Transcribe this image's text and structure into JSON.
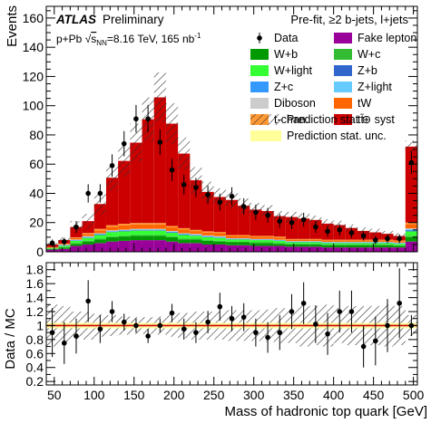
{
  "chart_data": {
    "type": "bar",
    "stacked": true,
    "histogram": true,
    "x_bin_edges": [
      40,
      55,
      70,
      85,
      100,
      115,
      130,
      145,
      160,
      175,
      190,
      205,
      220,
      235,
      250,
      265,
      280,
      295,
      310,
      325,
      340,
      355,
      370,
      385,
      400,
      415,
      430,
      445,
      460,
      475,
      490,
      505
    ],
    "xlabel": "Mass of hadronic top quark [GeV]",
    "ylabel": "Events",
    "xlim": [
      40,
      505
    ],
    "ylim": [
      0,
      168
    ],
    "x_ticks": [
      "50",
      "100",
      "150",
      "200",
      "250",
      "300",
      "350",
      "400",
      "450",
      "500"
    ],
    "y_ticks": [
      "0",
      "20",
      "40",
      "60",
      "80",
      "100",
      "120",
      "140",
      "160"
    ],
    "annotations": {
      "atlas": "ATLAS",
      "preliminary": "Preliminary",
      "collision_prefix": "p+Pb ",
      "sqrt_s": "s",
      "sqrt_sub": "NN",
      "collision_suffix": "=8.16 TeV, 165 nb",
      "lumi_exp": "-1",
      "region": "Pre-fit, ≥2 b-jets, l+jets"
    },
    "series": [
      {
        "name": "Fake lepton",
        "color": "#990099",
        "values": [
          1.5,
          2,
          4,
          5,
          6,
          7,
          7.5,
          8,
          8,
          8,
          7,
          6,
          6,
          5,
          5,
          4.5,
          4.5,
          4,
          4,
          4,
          3.5,
          3.5,
          3.5,
          3,
          3,
          3,
          3,
          3,
          3,
          3,
          7
        ]
      },
      {
        "name": "W+b",
        "color": "#009900",
        "values": [
          0.5,
          1,
          1.5,
          2,
          2.5,
          3,
          3,
          3,
          3,
          3,
          3,
          2.5,
          2.5,
          2.5,
          2,
          2,
          2,
          2,
          2,
          1.5,
          1.5,
          1.5,
          1.5,
          1.5,
          1.5,
          1.5,
          1.5,
          1.5,
          1.5,
          1,
          3
        ]
      },
      {
        "name": "W+c",
        "color": "#33bb33",
        "values": [
          0.2,
          0.3,
          0.5,
          0.5,
          0.5,
          0.5,
          0.5,
          0.5,
          0.5,
          0.5,
          0.5,
          0.5,
          0.5,
          0.5,
          0.5,
          0.5,
          0.5,
          0.5,
          0.5,
          0.5,
          0.5,
          0.5,
          0.5,
          0.5,
          0.5,
          0.5,
          0.5,
          0.5,
          0.5,
          0.5,
          1
        ]
      },
      {
        "name": "W+light",
        "color": "#33ff33",
        "values": [
          0.5,
          0.8,
          1.5,
          2,
          2.5,
          3,
          3,
          3,
          3,
          3,
          2.5,
          2.5,
          2,
          2,
          2,
          1.5,
          1.5,
          1.5,
          1.5,
          1.5,
          1,
          1,
          1,
          1,
          1,
          1,
          1,
          1,
          1,
          1,
          3
        ]
      },
      {
        "name": "Z+b",
        "color": "#3366cc",
        "values": [
          0,
          0.2,
          0.2,
          0.3,
          0.3,
          0.3,
          0.3,
          0.3,
          0.3,
          0.3,
          0.3,
          0.3,
          0.3,
          0.3,
          0.3,
          0.2,
          0.2,
          0.2,
          0.2,
          0.2,
          0.2,
          0.2,
          0.2,
          0.2,
          0.2,
          0.2,
          0.2,
          0.2,
          0.2,
          0.2,
          0.5
        ]
      },
      {
        "name": "Z+c",
        "color": "#3399ff",
        "values": [
          0,
          0.2,
          0.2,
          0.3,
          0.3,
          0.3,
          0.3,
          0.3,
          0.3,
          0.3,
          0.3,
          0.3,
          0.3,
          0.3,
          0.3,
          0.2,
          0.2,
          0.2,
          0.2,
          0.2,
          0.2,
          0.2,
          0.2,
          0.2,
          0.2,
          0.2,
          0.2,
          0.2,
          0.2,
          0.2,
          0.5
        ]
      },
      {
        "name": "Z+light",
        "color": "#66ccff",
        "values": [
          0,
          0.2,
          0.3,
          0.3,
          0.3,
          0.3,
          0.3,
          0.3,
          0.3,
          0.3,
          0.3,
          0.3,
          0.3,
          0.3,
          0.3,
          0.2,
          0.2,
          0.2,
          0.2,
          0.2,
          0.2,
          0.2,
          0.2,
          0.2,
          0.2,
          0.2,
          0.2,
          0.2,
          0.2,
          0.2,
          0.5
        ]
      },
      {
        "name": "Diboson",
        "color": "#cccccc",
        "values": [
          0,
          0.2,
          0.2,
          0.3,
          0.3,
          0.3,
          0.3,
          0.3,
          0.3,
          0.3,
          0.3,
          0.3,
          0.3,
          0.3,
          0.3,
          0.2,
          0.2,
          0.2,
          0.2,
          0.2,
          0.2,
          0.2,
          0.2,
          0.2,
          0.2,
          0.2,
          0.2,
          0.2,
          0.2,
          0.2,
          0.5
        ]
      },
      {
        "name": "tW",
        "color": "#ff6600",
        "values": [
          0.3,
          0.5,
          1,
          1.5,
          2,
          2.5,
          3,
          3,
          3,
          3,
          2.5,
          2.5,
          2,
          2,
          2,
          1.5,
          1.5,
          1.5,
          1.5,
          1.5,
          1,
          1,
          1,
          1,
          1,
          1,
          1,
          1,
          1,
          1,
          3
        ]
      },
      {
        "name": "t-chan.",
        "color": "#ff9933",
        "values": [
          0.2,
          0.3,
          0.5,
          0.7,
          1,
          1,
          1,
          1,
          1,
          1,
          1,
          1,
          0.8,
          0.8,
          0.8,
          0.7,
          0.7,
          0.6,
          0.6,
          0.6,
          0.5,
          0.5,
          0.5,
          0.5,
          0.5,
          0.5,
          0.5,
          0.5,
          0.5,
          0.5,
          1
        ]
      },
      {
        "name": "tt̄",
        "color": "#cc0000",
        "values": [
          1.8,
          2.3,
          7.1,
          8.1,
          17,
          32.5,
          43,
          55,
          71,
          86,
          70,
          51,
          34,
          27,
          24,
          24,
          20,
          18,
          17,
          14,
          15,
          14,
          13,
          11,
          10,
          8,
          6,
          5,
          4,
          3,
          52
        ]
      }
    ],
    "uncertainty_halfwidth": [
      1,
      2,
      4,
      5,
      7,
      9,
      11,
      13,
      15,
      17,
      14,
      11,
      9,
      7,
      6,
      6,
      5,
      4.5,
      4,
      3.5,
      3.5,
      3.5,
      3,
      3,
      3,
      2.5,
      2.5,
      2.5,
      2,
      2,
      4
    ],
    "data_points": {
      "name": "Data",
      "values": [
        6,
        7,
        17,
        40,
        40,
        59,
        74,
        91,
        91,
        75,
        56,
        46,
        44,
        39,
        34,
        38,
        31,
        27,
        25,
        21,
        20,
        22,
        17,
        14,
        15,
        13,
        11,
        8,
        9,
        9,
        61
      ],
      "errors": [
        2.4,
        2.6,
        4.1,
        6.3,
        6.3,
        7.7,
        8.6,
        9.5,
        9.5,
        8.7,
        7.5,
        6.8,
        6.6,
        6.2,
        5.8,
        6.2,
        5.6,
        5.2,
        5.0,
        4.6,
        4.5,
        4.7,
        4.1,
        3.7,
        3.9,
        3.6,
        3.3,
        2.8,
        3.0,
        3.0,
        7.8
      ]
    },
    "legend": {
      "placement": "top-right",
      "data_label": "Data",
      "syst_label": "Prediction stat ⊕ syst",
      "stat_label": "Prediction stat. unc."
    },
    "ratio": {
      "ylabel": "Data / MC",
      "ylim": [
        0.15,
        1.9
      ],
      "y_ticks": [
        "0.2",
        "0.4",
        "0.6",
        "0.8",
        "1",
        "1.2",
        "1.4",
        "1.6",
        "1.8"
      ],
      "values": [
        0.9,
        0.75,
        0.85,
        1.35,
        0.95,
        1.2,
        1.05,
        1.0,
        0.85,
        1.0,
        1.18,
        0.95,
        0.9,
        1.05,
        1.27,
        1.1,
        1.12,
        0.9,
        0.83,
        0.9,
        1.2,
        1.32,
        1.02,
        0.88,
        1.2,
        1.2,
        0.7,
        0.78,
        1.0,
        1.32,
        1.0
      ],
      "errors": [
        0.35,
        0.3,
        0.25,
        0.3,
        0.2,
        0.15,
        0.12,
        0.1,
        0.1,
        0.1,
        0.13,
        0.15,
        0.15,
        0.16,
        0.2,
        0.18,
        0.2,
        0.2,
        0.22,
        0.25,
        0.25,
        0.3,
        0.27,
        0.3,
        0.3,
        0.3,
        0.3,
        0.35,
        0.38,
        0.5,
        0.15
      ],
      "syst_halfwidth": [
        0.3,
        0.28,
        0.2,
        0.2,
        0.16,
        0.15,
        0.13,
        0.12,
        0.12,
        0.13,
        0.16,
        0.18,
        0.2,
        0.2,
        0.2,
        0.22,
        0.22,
        0.22,
        0.23,
        0.25,
        0.25,
        0.3,
        0.28,
        0.3,
        0.25,
        0.28,
        0.28,
        0.28,
        0.3,
        0.28,
        0.15
      ],
      "stat_halfwidth": 0.04
    }
  }
}
